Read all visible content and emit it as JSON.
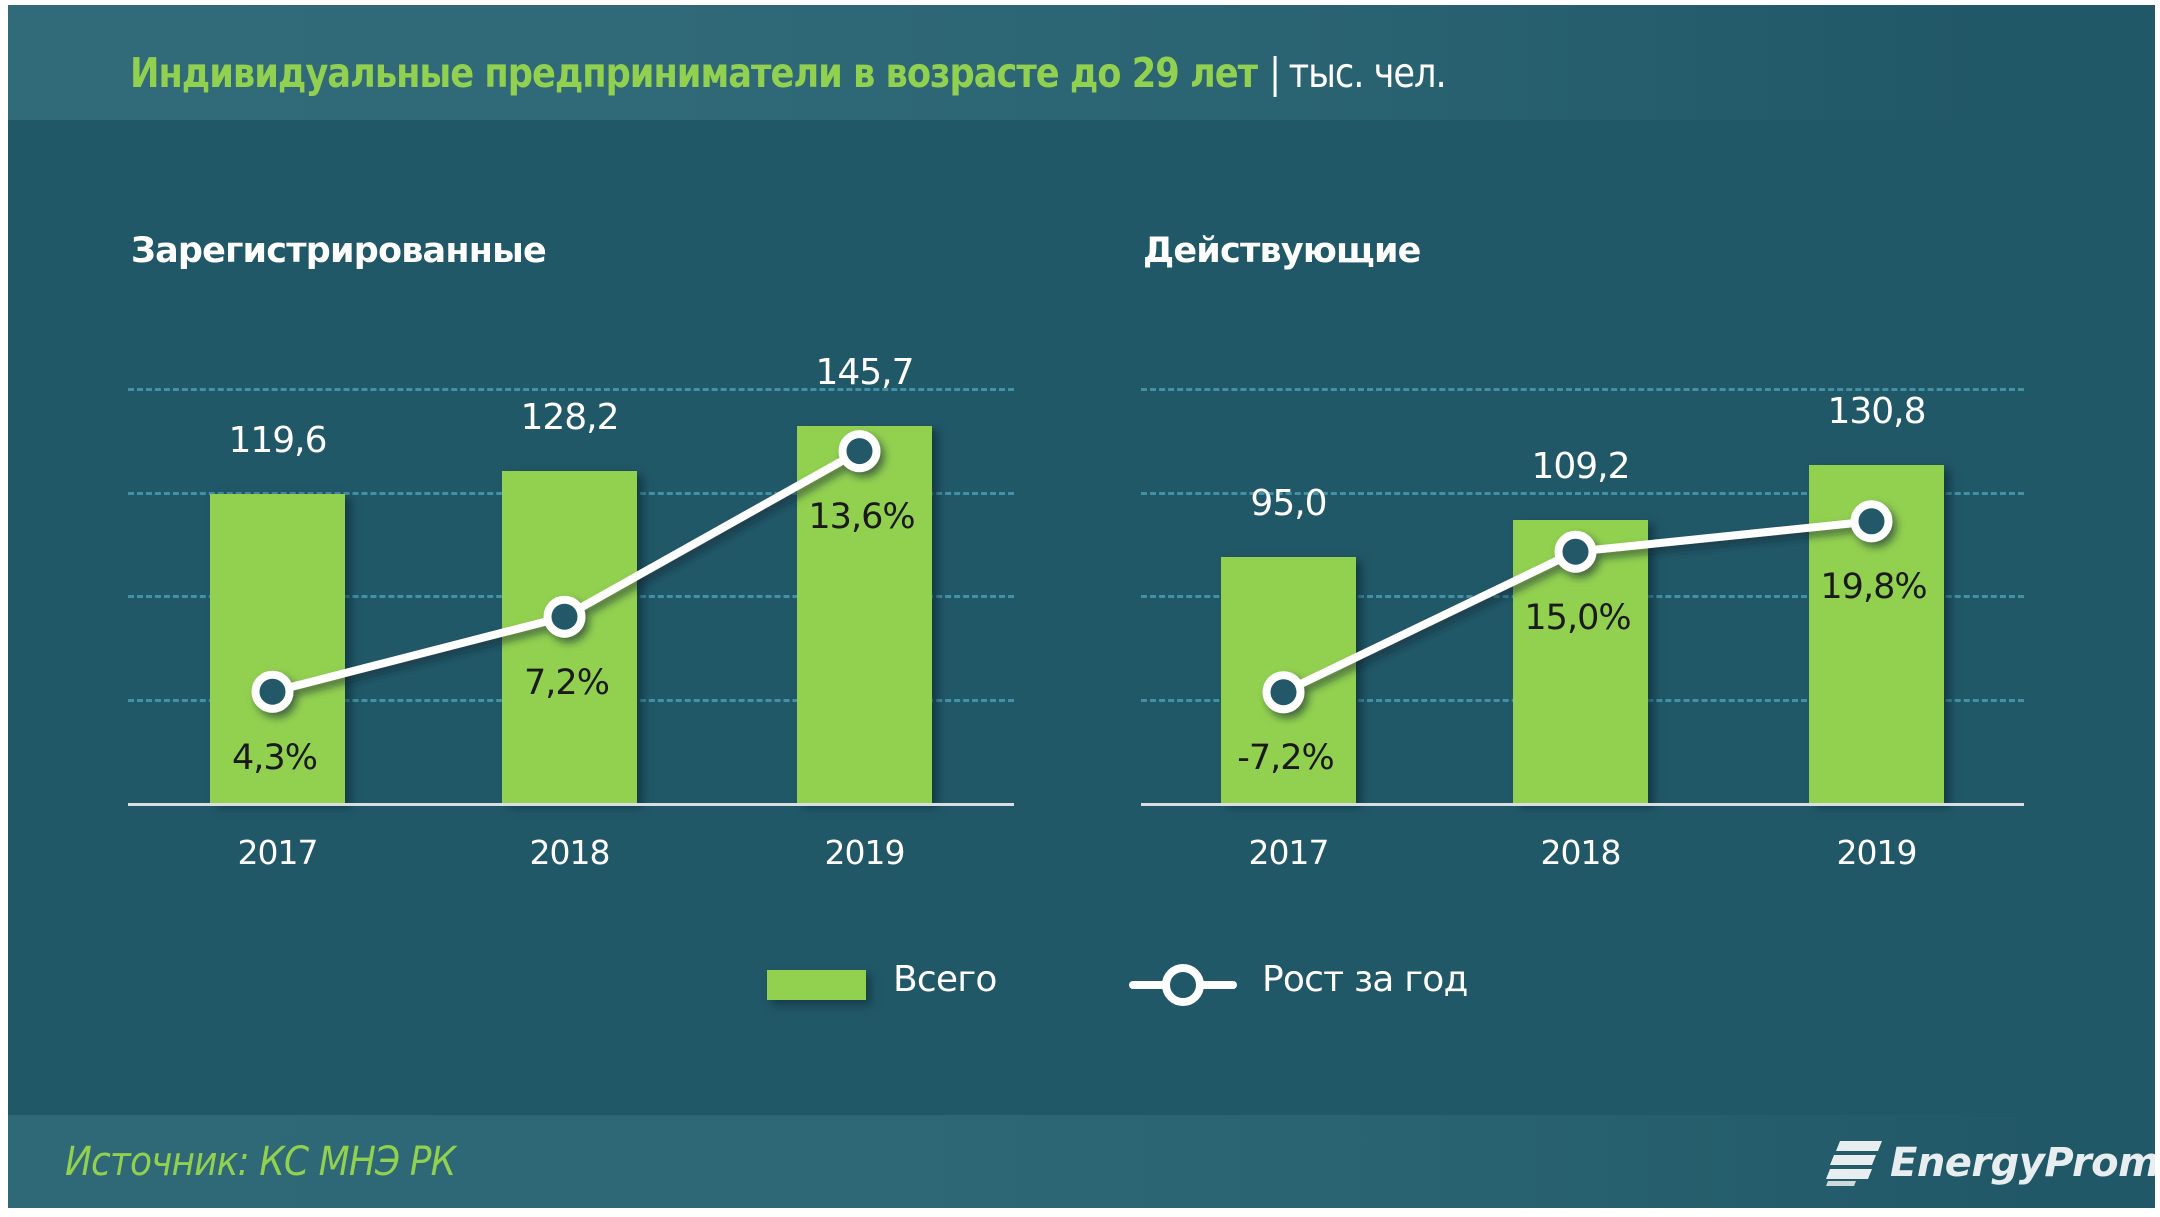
{
  "header": {
    "title": "Индивидуальные предприниматели в возрасте до 29 лет",
    "separator": "|",
    "unit": "тыс. чел."
  },
  "footer": {
    "source": "Источник: КС МНЭ РК",
    "logo_text": "EnergyProm",
    "logo_icon": "energyprom-logo-icon"
  },
  "legend": {
    "bars_label": "Всего",
    "line_label": "Рост за год"
  },
  "colors": {
    "background": "#215868",
    "bar": "#92D050",
    "title_accent": "#92D050",
    "line": "#FFFFFF",
    "gridline": "#4A9BB0"
  },
  "chart_data": [
    {
      "type": "bar+line",
      "title": "Зарегистрированные",
      "categories": [
        "2017",
        "2018",
        "2019"
      ],
      "series": [
        {
          "name": "Всего",
          "type": "bar",
          "values": [
            119.6,
            128.2,
            145.7
          ],
          "labels": [
            "119,6",
            "128,2",
            "145,7"
          ]
        },
        {
          "name": "Рост за год",
          "type": "line",
          "axis": "secondary",
          "values": [
            4.3,
            7.2,
            13.6
          ],
          "labels": [
            "4,3%",
            "7,2%",
            "13,6%"
          ]
        }
      ],
      "ylim": [
        0,
        160
      ],
      "y2lim": [
        0,
        16
      ],
      "gridlines": [
        40,
        80,
        120,
        160
      ],
      "grid": true,
      "unit": "тыс. чел."
    },
    {
      "type": "bar+line",
      "title": "Действующие",
      "categories": [
        "2017",
        "2018",
        "2019"
      ],
      "series": [
        {
          "name": "Всего",
          "type": "bar",
          "values": [
            95.0,
            109.2,
            130.8
          ],
          "labels": [
            "95,0",
            "109,2",
            "130,8"
          ]
        },
        {
          "name": "Рост за год",
          "type": "line",
          "axis": "secondary",
          "values": [
            -7.2,
            15.0,
            19.8
          ],
          "labels": [
            "-7,2%",
            "15,0%",
            "19,8%"
          ]
        }
      ],
      "ylim": [
        0,
        160
      ],
      "y2lim": [
        -24.7,
        40.7
      ],
      "gridlines": [
        40,
        80,
        120,
        160
      ],
      "grid": true,
      "unit": "тыс. чел."
    }
  ]
}
